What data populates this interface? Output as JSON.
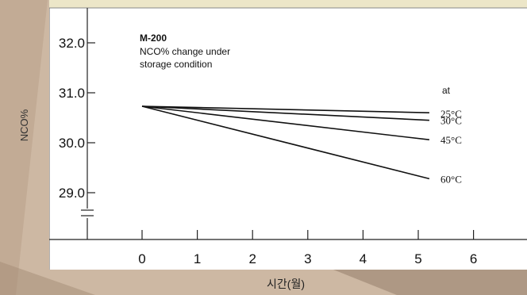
{
  "colors": {
    "background": "#cdb8a3",
    "plot": "#ffffff",
    "axis": "#222222",
    "line": "#111111",
    "top_band": "#ece6c8"
  },
  "chart_data": {
    "type": "line",
    "title": "M-200",
    "subtitle_lines": [
      "NCO% change under",
      "storage condition"
    ],
    "ylabel": "NCO%",
    "xlabel": "시간(월)",
    "x_ticks": [
      0,
      1,
      2,
      3,
      4,
      5,
      6
    ],
    "y_ticks": [
      29.0,
      30.0,
      31.0,
      32.0
    ],
    "y_tick_labels": [
      "29.0",
      "30.0",
      "31.0",
      "32.0"
    ],
    "xlim": [
      -1.7,
      6.2
    ],
    "ylim": [
      28.0,
      32.5
    ],
    "y_axis_break": true,
    "grid": false,
    "legend_header": "at",
    "series": [
      {
        "name": "25°C",
        "x": [
          0,
          5.2
        ],
        "y": [
          30.73,
          30.6
        ]
      },
      {
        "name": "30°C",
        "x": [
          0,
          5.2
        ],
        "y": [
          30.73,
          30.45
        ]
      },
      {
        "name": "45°C",
        "x": [
          0,
          5.2
        ],
        "y": [
          30.73,
          30.06
        ]
      },
      {
        "name": "60°C",
        "x": [
          0,
          5.2
        ],
        "y": [
          30.73,
          29.28
        ]
      }
    ]
  }
}
